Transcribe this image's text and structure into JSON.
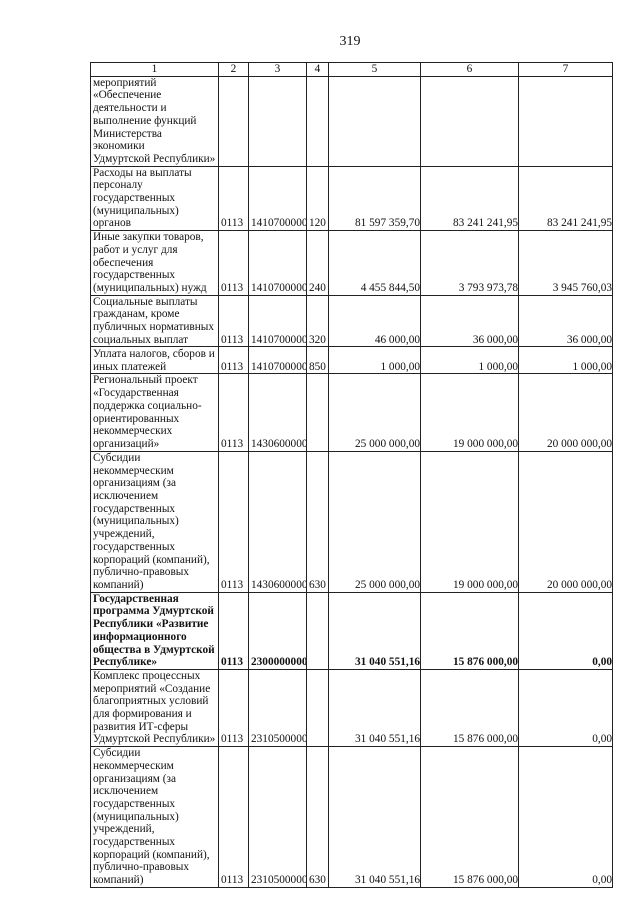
{
  "page_number": "319",
  "table": {
    "headers": [
      "1",
      "2",
      "3",
      "4",
      "5",
      "6",
      "7"
    ],
    "rows": [
      {
        "name": "мероприятий\n«Обеспечение\nдеятельности и\nвыполнение функций\nМинистерства экономики\nУдмуртской Республики»",
        "c2": "",
        "c3": "",
        "c4": "",
        "c5": "",
        "c6": "",
        "c7": "",
        "bold": false
      },
      {
        "name": "Расходы на выплаты\nперсоналу\nгосударственных\n(муниципальных) органов",
        "c2": "0113",
        "c3": "1410700000",
        "c4": "120",
        "c5": "81 597 359,70",
        "c6": "83 241 241,95",
        "c7": "83 241 241,95",
        "bold": false
      },
      {
        "name": "Иные закупки товаров,\nработ и услуг для\nобеспечения\nгосударственных\n(муниципальных) нужд",
        "c2": "0113",
        "c3": "1410700000",
        "c4": "240",
        "c5": "4 455 844,50",
        "c6": "3 793 973,78",
        "c7": "3 945 760,03",
        "bold": false
      },
      {
        "name": "Социальные выплаты\nгражданам, кроме\nпубличных нормативных\nсоциальных выплат",
        "c2": "0113",
        "c3": "1410700000",
        "c4": "320",
        "c5": "46 000,00",
        "c6": "36 000,00",
        "c7": "36 000,00",
        "bold": false
      },
      {
        "name": "Уплата налогов, сборов и\nиных платежей",
        "c2": "0113",
        "c3": "1410700000",
        "c4": "850",
        "c5": "1 000,00",
        "c6": "1 000,00",
        "c7": "1 000,00",
        "bold": false
      },
      {
        "name": "Региональный проект\n«Государственная\nподдержка социально-\nориентированных\nнекоммерческих\nорганизаций»",
        "c2": "0113",
        "c3": "1430600000",
        "c4": "",
        "c5": "25 000 000,00",
        "c6": "19 000 000,00",
        "c7": "20 000 000,00",
        "bold": false
      },
      {
        "name": "Субсидии\nнекоммерческим\nорганизациям (за\nисключением\nгосударственных\n(муниципальных)\nучреждений,\nгосударственных\nкорпораций (компаний),\nпублично-правовых\nкомпаний)",
        "c2": "0113",
        "c3": "1430600000",
        "c4": "630",
        "c5": "25 000 000,00",
        "c6": "19 000 000,00",
        "c7": "20 000 000,00",
        "bold": false
      },
      {
        "name": "Государственная\nпрограмма Удмуртской\nРеспублики «Развитие\nинформационного\nобщества в Удмуртской\nРеспублике»",
        "c2": "0113",
        "c3": "2300000000",
        "c4": "",
        "c5": "31 040 551,16",
        "c6": "15 876 000,00",
        "c7": "0,00",
        "bold": true
      },
      {
        "name": "Комплекс процессных\nмероприятий «Создание\nблагоприятных условий\nдля формирования и\nразвития ИТ-сферы\nУдмуртской Республики»",
        "c2": "0113",
        "c3": "2310500000",
        "c4": "",
        "c5": "31 040 551,16",
        "c6": "15 876 000,00",
        "c7": "0,00",
        "bold": false
      },
      {
        "name": "Субсидии\nнекоммерческим\nорганизациям (за\nисключением\nгосударственных\n(муниципальных)\nучреждений,\nгосударственных\nкорпораций (компаний),\nпублично-правовых\nкомпаний)",
        "c2": "0113",
        "c3": "2310500000",
        "c4": "630",
        "c5": "31 040 551,16",
        "c6": "15 876 000,00",
        "c7": "0,00",
        "bold": false
      }
    ]
  }
}
